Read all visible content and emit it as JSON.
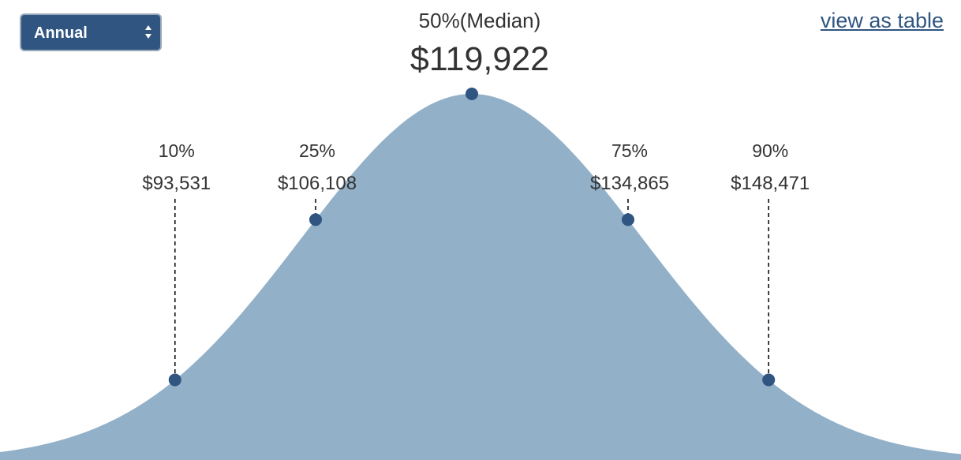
{
  "controls": {
    "period_select": {
      "value": "Annual"
    },
    "view_table_label": "view as table"
  },
  "colors": {
    "curve_fill": "#92b0c8",
    "marker": "#2f5580",
    "select_bg": "#2f5580"
  },
  "chart_data": {
    "type": "area",
    "title": "",
    "xlabel": "",
    "ylabel": "",
    "grid": false,
    "percentiles": [
      {
        "pct_label": "10%",
        "value_label": "$93,531",
        "value": 93531
      },
      {
        "pct_label": "25%",
        "value_label": "$106,108",
        "value": 106108
      },
      {
        "pct_label": "50%(Median)",
        "value_label": "$119,922",
        "value": 119922,
        "median": true
      },
      {
        "pct_label": "75%",
        "value_label": "$134,865",
        "value": 134865
      },
      {
        "pct_label": "90%",
        "value_label": "$148,471",
        "value": 148471
      }
    ]
  }
}
